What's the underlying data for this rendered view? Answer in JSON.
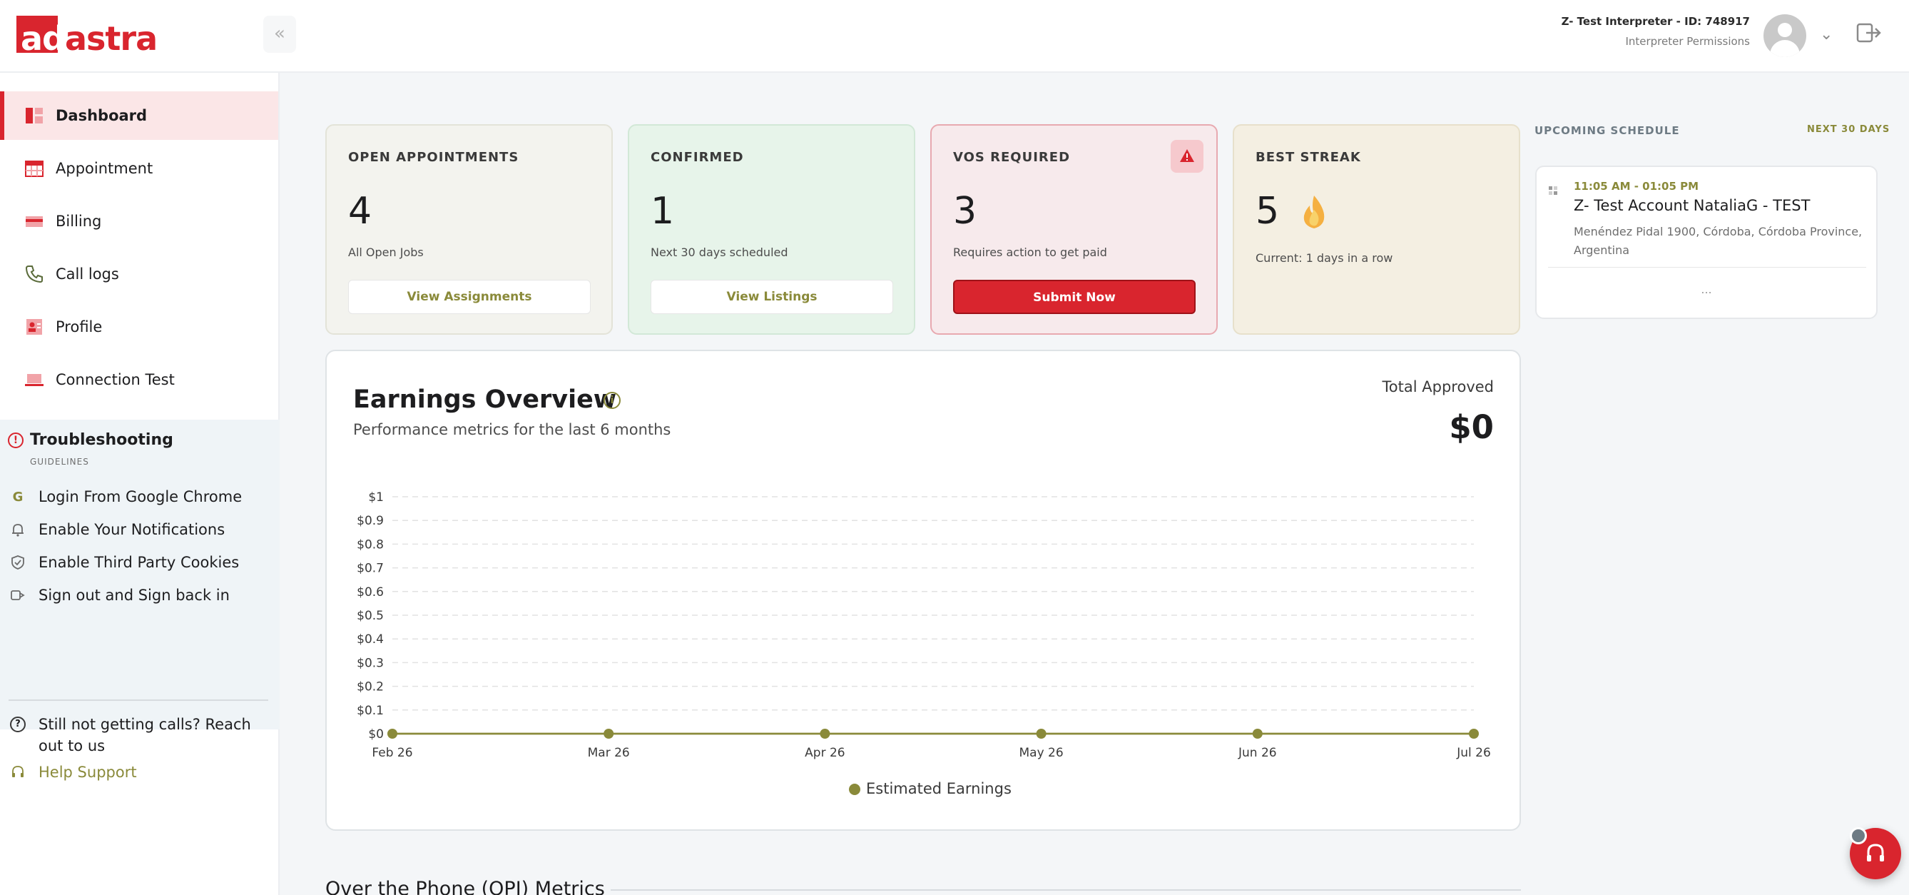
{
  "brand": {
    "logo_part1": "ad",
    "logo_part2": "astra",
    "accent_color": "#d9252e",
    "olive_color": "#8a8a3a"
  },
  "header": {
    "collapse_icon": "double-chevron-left-icon",
    "user_name": "Z- Test Interpreter - ID: 748917",
    "user_role": "Interpreter Permissions"
  },
  "sidebar": {
    "items": [
      {
        "label": "Dashboard",
        "icon": "dashboard-icon",
        "active": true
      },
      {
        "label": "Appointment",
        "icon": "calendar-icon"
      },
      {
        "label": "Billing",
        "icon": "billing-card-icon"
      },
      {
        "label": "Call logs",
        "icon": "phone-icon"
      },
      {
        "label": "Profile",
        "icon": "profile-card-icon"
      },
      {
        "label": "Connection Test",
        "icon": "laptop-icon"
      }
    ],
    "troubleshooting": {
      "title": "Troubleshooting",
      "subtitle": "GUIDELINES",
      "guides": [
        {
          "label": "Login From Google Chrome",
          "icon": "google-icon"
        },
        {
          "label": "Enable Your Notifications",
          "icon": "bell-icon"
        },
        {
          "label": "Enable Third Party Cookies",
          "icon": "shield-icon"
        },
        {
          "label": "Sign out and Sign back in",
          "icon": "sign-out-icon"
        }
      ],
      "still_text": "Still not getting calls? Reach out to us",
      "help_label": "Help Support"
    }
  },
  "cards": [
    {
      "label": "OPEN APPOINTMENTS",
      "value": "4",
      "sub": "All Open Jobs",
      "button": "View Assignments",
      "bg": "#f3f3ee"
    },
    {
      "label": "CONFIRMED",
      "value": "1",
      "sub": "Next 30 days scheduled",
      "button": "View Listings",
      "bg": "#e7f4ea"
    },
    {
      "label": "VOS REQUIRED",
      "value": "3",
      "sub": "Requires action to get paid",
      "button": "Submit Now",
      "bg": "#f7eaec"
    },
    {
      "label": "BEST STREAK",
      "value": "5",
      "sub": "Current: 1 days in a row",
      "bg": "#f4efe2"
    }
  ],
  "schedule": {
    "label": "UPCOMING SCHEDULE",
    "range": "NEXT 30 DAYS",
    "item": {
      "time": "11:05 AM - 01:05 PM",
      "title": "Z- Test Account NataliaG - TEST",
      "address": "Menéndez Pidal 1900, Córdoba, Córdoba Province, Argentina"
    },
    "more": "..."
  },
  "earnings": {
    "title": "Earnings Overview",
    "subtitle": "Performance metrics for the last 6 months",
    "total_label": "Total Approved",
    "total_value": "$0"
  },
  "chart_data": {
    "type": "line",
    "x": [
      "Feb 26",
      "Mar 26",
      "Apr 26",
      "May 26",
      "Jun 26",
      "Jul 26"
    ],
    "series": [
      {
        "name": "Estimated Earnings",
        "values": [
          0,
          0,
          0,
          0,
          0,
          0
        ],
        "color": "#8a8a3a"
      }
    ],
    "y_ticks": [
      "$0",
      "$0.1",
      "$0.2",
      "$0.3",
      "$0.4",
      "$0.5",
      "$0.6",
      "$0.7",
      "$0.8",
      "$0.9",
      "$1"
    ],
    "ylim": [
      0,
      1
    ],
    "grid": true,
    "legend_position": "bottom-center"
  },
  "section": {
    "opi_title": "Over the Phone (OPI) Metrics"
  }
}
